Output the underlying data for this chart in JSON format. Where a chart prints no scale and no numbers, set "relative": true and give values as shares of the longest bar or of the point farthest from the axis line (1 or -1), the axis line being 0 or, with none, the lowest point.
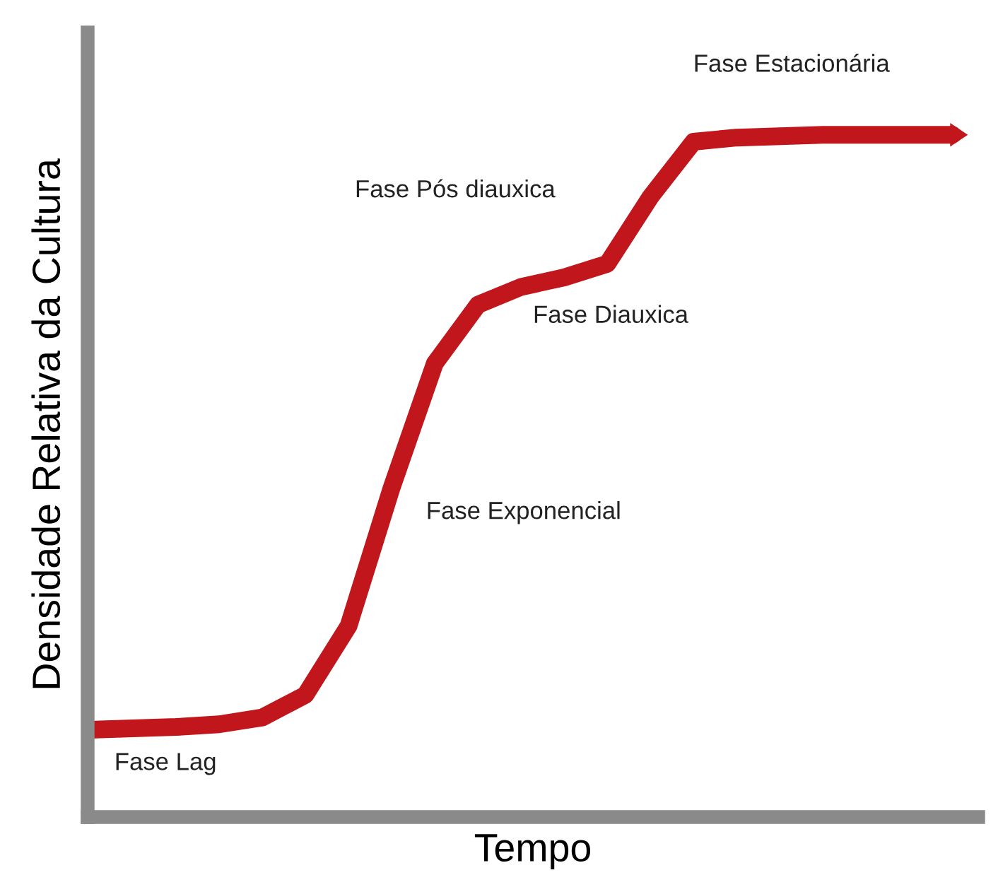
{
  "chart_data": {
    "type": "line",
    "relative": true,
    "xlabel": "Tempo",
    "ylabel": "Densidade Relativa da Cultura",
    "categories": [
      null,
      null,
      null,
      null,
      null,
      null,
      null,
      null,
      null,
      null,
      null,
      null,
      null,
      null,
      null,
      null,
      null,
      null,
      null,
      null,
      null
    ],
    "series": [
      {
        "color": "#c0161c",
        "values": [
          0.128,
          0.13,
          0.132,
          0.136,
          0.146,
          0.179,
          0.28,
          0.483,
          0.665,
          0.751,
          0.777,
          0.791,
          0.811,
          0.909,
          0.99,
          0.996,
          0.998,
          1,
          1,
          1,
          1
        ]
      }
    ],
    "annotations": [
      "Fase Lag",
      "Fase Exponencial",
      "Fase Diauxica",
      "Fase Pós diauxica",
      "Fase Estacionária"
    ],
    "grid": false,
    "line_style": "solid"
  }
}
